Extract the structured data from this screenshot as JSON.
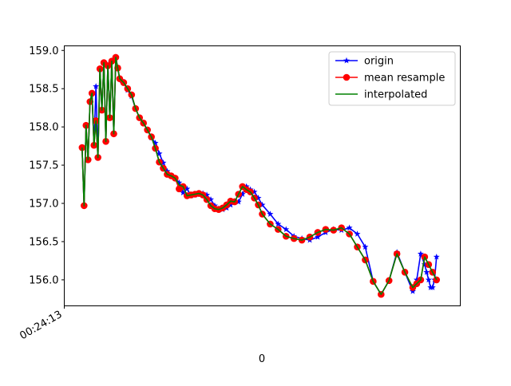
{
  "chart_data": {
    "type": "line",
    "title": "",
    "xlabel": "0",
    "ylabel": "",
    "xlim": [
      0,
      100
    ],
    "ylim": [
      155.66,
      159.06
    ],
    "yticks": [
      156.0,
      156.5,
      157.0,
      157.5,
      158.0,
      158.5,
      159.0
    ],
    "xtick_labels": [
      {
        "x": 0,
        "label": "00:24:13"
      }
    ],
    "grid": false,
    "legend": {
      "position": "top-right"
    },
    "series": [
      {
        "name": "origin",
        "color": "#0000ff",
        "marker": "star",
        "x": [
          4.5,
          5,
          5.5,
          6,
          6.5,
          7,
          7.5,
          8,
          8.5,
          9,
          9.5,
          10,
          10.5,
          11,
          11.5,
          12,
          12.5,
          13,
          13.5,
          14,
          14.5,
          15,
          16,
          17,
          18,
          19,
          20,
          21,
          22,
          23,
          24,
          25,
          26,
          27,
          28,
          29,
          30,
          31,
          32,
          33,
          34,
          35,
          36,
          37,
          38,
          39,
          40,
          41,
          42,
          43,
          44,
          45,
          46,
          47,
          48,
          49,
          50,
          52,
          54,
          56,
          58,
          60,
          62,
          64,
          66,
          68,
          70,
          72,
          74,
          76,
          78,
          80,
          82,
          84,
          86,
          88,
          89,
          90,
          91,
          91.5,
          92,
          92.5,
          93,
          93.5,
          94
        ],
        "values": [
          157.73,
          156.97,
          158.02,
          157.57,
          158.33,
          158.44,
          157.76,
          158.53,
          157.61,
          158.75,
          158.22,
          158.84,
          157.81,
          158.81,
          158.12,
          158.86,
          157.91,
          158.91,
          158.77,
          158.63,
          158.61,
          158.58,
          158.48,
          158.4,
          158.24,
          158.12,
          158.05,
          157.96,
          157.86,
          157.79,
          157.65,
          157.53,
          157.42,
          157.36,
          157.33,
          157.27,
          157.14,
          157.19,
          157.1,
          157.11,
          157.12,
          157.13,
          157.11,
          157.05,
          156.97,
          156.93,
          156.92,
          156.94,
          156.98,
          157.03,
          157.02,
          157.12,
          157.22,
          157.18,
          157.15,
          157.07,
          156.98,
          156.86,
          156.73,
          156.66,
          156.57,
          156.54,
          156.52,
          156.56,
          156.62,
          156.66,
          156.65,
          156.68,
          156.6,
          156.43,
          155.98,
          155.81,
          155.99,
          156.36,
          156.1,
          155.85,
          156.0,
          156.34,
          156.2,
          156.1,
          156.0,
          155.9,
          155.9,
          156.0,
          156.3
        ]
      },
      {
        "name": "mean resample",
        "color": "#ff0000",
        "marker": "circle",
        "x": [
          4.5,
          5,
          5.5,
          6,
          6.5,
          7,
          7.5,
          8,
          8.5,
          9,
          9.5,
          10,
          10.5,
          11,
          11.5,
          12,
          12.5,
          13,
          13.5,
          14,
          15,
          16,
          17,
          18,
          19,
          20,
          21,
          22,
          23,
          24,
          25,
          26,
          27,
          28,
          29,
          30,
          31,
          32,
          33,
          34,
          35,
          36,
          37,
          38,
          39,
          40,
          41,
          42,
          43,
          44,
          45,
          46,
          47,
          48,
          49,
          50,
          52,
          54,
          56,
          58,
          60,
          62,
          64,
          66,
          68,
          70,
          72,
          74,
          76,
          78,
          80,
          82,
          84,
          86,
          88,
          89,
          90,
          91,
          92,
          93,
          94
        ],
        "values": [
          157.73,
          156.97,
          158.02,
          157.57,
          158.33,
          158.44,
          157.76,
          158.08,
          157.6,
          158.76,
          158.22,
          158.84,
          157.81,
          158.8,
          158.12,
          158.86,
          157.91,
          158.91,
          158.77,
          158.63,
          158.58,
          158.5,
          158.42,
          158.24,
          158.12,
          158.05,
          157.96,
          157.87,
          157.72,
          157.54,
          157.46,
          157.38,
          157.36,
          157.33,
          157.19,
          157.22,
          157.1,
          157.11,
          157.12,
          157.13,
          157.11,
          157.05,
          156.97,
          156.93,
          156.92,
          156.94,
          156.98,
          157.03,
          157.02,
          157.12,
          157.22,
          157.18,
          157.15,
          157.07,
          156.98,
          156.86,
          156.73,
          156.66,
          156.57,
          156.54,
          156.52,
          156.56,
          156.62,
          156.66,
          156.65,
          156.68,
          156.6,
          156.43,
          156.26,
          155.98,
          155.81,
          155.99,
          156.34,
          156.1,
          155.9,
          155.95,
          156.0,
          156.3,
          156.2,
          156.1,
          156.0
        ]
      },
      {
        "name": "interpolated",
        "color": "#008000",
        "marker": "none",
        "x": [
          4.5,
          5,
          5.5,
          6,
          6.5,
          7,
          7.5,
          8,
          8.5,
          9,
          9.5,
          10,
          10.5,
          11,
          11.5,
          12,
          12.5,
          13,
          13.5,
          14,
          15,
          16,
          17,
          18,
          19,
          20,
          21,
          22,
          23,
          24,
          25,
          26,
          27,
          28,
          29,
          30,
          31,
          32,
          33,
          34,
          35,
          36,
          37,
          38,
          39,
          40,
          41,
          42,
          43,
          44,
          45,
          46,
          47,
          48,
          49,
          50,
          52,
          54,
          56,
          58,
          60,
          62,
          64,
          66,
          68,
          70,
          72,
          74,
          76,
          78,
          80,
          82,
          84,
          86,
          88,
          89,
          90,
          91,
          92,
          93,
          94
        ],
        "values": [
          157.73,
          156.97,
          158.02,
          157.57,
          158.33,
          158.44,
          157.76,
          158.08,
          157.6,
          158.76,
          158.22,
          158.84,
          157.81,
          158.8,
          158.12,
          158.86,
          157.91,
          158.91,
          158.77,
          158.63,
          158.58,
          158.5,
          158.42,
          158.24,
          158.12,
          158.05,
          157.96,
          157.87,
          157.72,
          157.54,
          157.46,
          157.38,
          157.36,
          157.33,
          157.24,
          157.22,
          157.1,
          157.11,
          157.12,
          157.13,
          157.11,
          157.05,
          156.97,
          156.93,
          156.92,
          156.94,
          156.98,
          157.03,
          157.02,
          157.12,
          157.22,
          157.18,
          157.15,
          157.07,
          156.98,
          156.86,
          156.73,
          156.66,
          156.57,
          156.54,
          156.52,
          156.56,
          156.62,
          156.66,
          156.65,
          156.68,
          156.6,
          156.43,
          156.26,
          155.98,
          155.81,
          155.99,
          156.34,
          156.1,
          155.9,
          155.95,
          156.0,
          156.3,
          156.2,
          156.1,
          156.0
        ]
      }
    ]
  }
}
